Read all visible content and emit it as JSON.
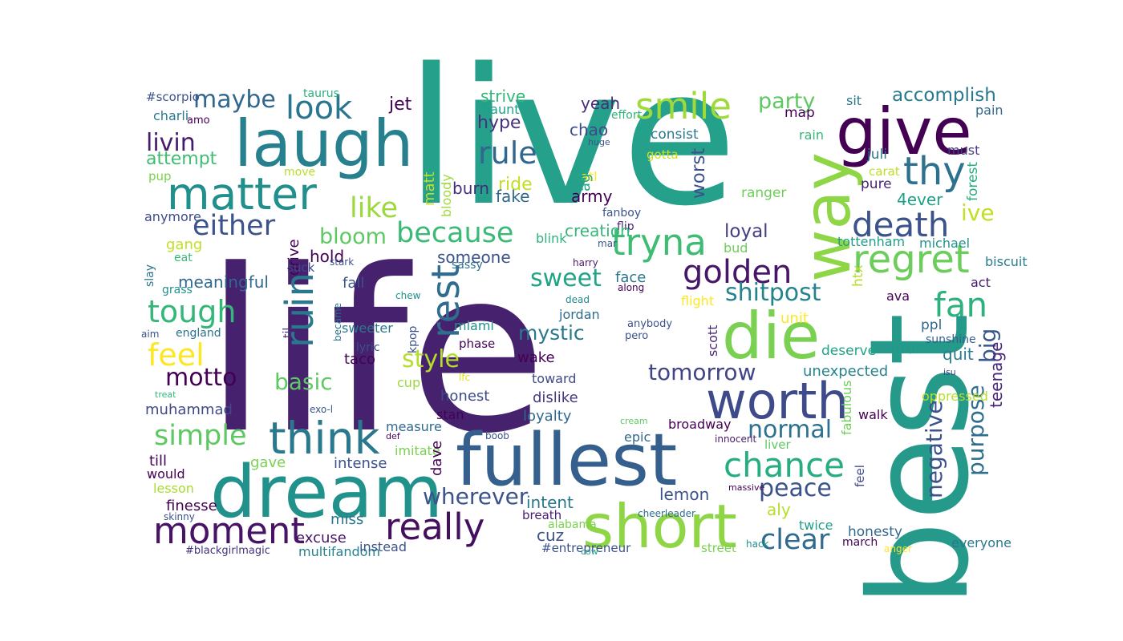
{
  "words": [
    {
      "text": "life",
      "color": "#46226e"
    },
    {
      "text": "live",
      "color": "#25a08b"
    },
    {
      "text": "best",
      "color": "#259a8b"
    },
    {
      "text": "fullest",
      "color": "#355f8d"
    },
    {
      "text": "dream",
      "color": "#21918c"
    },
    {
      "text": "laugh",
      "color": "#27808e"
    },
    {
      "text": "short",
      "color": "#8ed645"
    },
    {
      "text": "give",
      "color": "#440154"
    },
    {
      "text": "die",
      "color": "#7ad151"
    },
    {
      "text": "way",
      "color": "#8ed645"
    },
    {
      "text": "matter",
      "color": "#21908c"
    },
    {
      "text": "worth",
      "color": "#3e4a89"
    },
    {
      "text": "moment",
      "color": "#471365"
    },
    {
      "text": "think",
      "color": "#2a788e"
    },
    {
      "text": "regret",
      "color": "#6ccd5a"
    },
    {
      "text": "tryna",
      "color": "#3fbc73"
    },
    {
      "text": "really",
      "color": "#440f5f"
    },
    {
      "text": "thy",
      "color": "#2c718e"
    },
    {
      "text": "smile",
      "color": "#9fda3a"
    },
    {
      "text": "ruin",
      "color": "#2a788e"
    },
    {
      "text": "rest",
      "color": "#2f6c8e"
    },
    {
      "text": "death",
      "color": "#3b528b"
    },
    {
      "text": "chance",
      "color": "#26ad81"
    },
    {
      "text": "peace",
      "color": "#3b528b"
    },
    {
      "text": "golden",
      "color": "#481668"
    },
    {
      "text": "fan",
      "color": "#2db27d"
    },
    {
      "text": "look",
      "color": "#2a768e"
    },
    {
      "text": "rule",
      "color": "#31668e"
    },
    {
      "text": "because",
      "color": "#3aba76"
    },
    {
      "text": "like",
      "color": "#9bd93c"
    },
    {
      "text": "either",
      "color": "#3b528b"
    },
    {
      "text": "tough",
      "color": "#35b779"
    },
    {
      "text": "feel",
      "color": "#fde725"
    },
    {
      "text": "simple",
      "color": "#5ec962"
    },
    {
      "text": "clear",
      "color": "#306a8e"
    },
    {
      "text": "normal",
      "color": "#2c728e"
    },
    {
      "text": "tomorrow",
      "color": "#404588"
    },
    {
      "text": "negative",
      "color": "#3b528b"
    },
    {
      "text": "purpose",
      "color": "#2e6f8e"
    },
    {
      "text": "big",
      "color": "#38588c"
    },
    {
      "text": "style",
      "color": "#b5de2b"
    },
    {
      "text": "sweet",
      "color": "#20a386"
    },
    {
      "text": "shitpost",
      "color": "#25838e"
    },
    {
      "text": "bloom",
      "color": "#5ec962"
    },
    {
      "text": "maybe",
      "color": "#31688e"
    },
    {
      "text": "livin",
      "color": "#481a6c"
    },
    {
      "text": "party",
      "color": "#5ec962"
    },
    {
      "text": "accomplish",
      "color": "#2a788e"
    },
    {
      "text": "ive",
      "color": "#c0df25"
    },
    {
      "text": "motto",
      "color": "#440154"
    },
    {
      "text": "basic",
      "color": "#5ec962"
    },
    {
      "text": "wherever",
      "color": "#3b528b"
    },
    {
      "text": "mystic",
      "color": "#2a788e"
    },
    {
      "text": "loyal",
      "color": "#433e85"
    },
    {
      "text": "attempt",
      "color": "#3fbc73"
    },
    {
      "text": "ride",
      "color": "#c2df23"
    },
    {
      "text": "hype",
      "color": "#46327e"
    },
    {
      "text": "yeah",
      "color": "#472d7b"
    },
    {
      "text": "jet",
      "color": "#440154"
    },
    {
      "text": "chao",
      "color": "#3e4a89"
    },
    {
      "text": "strive",
      "color": "#32b67a"
    },
    {
      "text": "haunt",
      "color": "#1fa088"
    },
    {
      "text": "effort",
      "color": "#2fb47c"
    },
    {
      "text": "huge",
      "color": "#3b528b"
    },
    {
      "text": "map",
      "color": "#440154"
    },
    {
      "text": "sit",
      "color": "#2a788e"
    },
    {
      "text": "pain",
      "color": "#31688e"
    },
    {
      "text": "rain",
      "color": "#35b779"
    },
    {
      "text": "juli",
      "color": "#2a788e"
    },
    {
      "text": "must",
      "color": "#433e85"
    },
    {
      "text": "carat",
      "color": "#bddf26"
    },
    {
      "text": "pure",
      "color": "#482475"
    },
    {
      "text": "forest",
      "color": "#25ac82"
    },
    {
      "text": "ranger",
      "color": "#6ccd5a"
    },
    {
      "text": "4ever",
      "color": "#1fa187"
    },
    {
      "text": "worst",
      "color": "#3b528b"
    },
    {
      "text": "consist",
      "color": "#2a788e"
    },
    {
      "text": "atl",
      "color": "#fde725"
    },
    {
      "text": "gotta",
      "color": "#c8e020"
    },
    {
      "text": "age",
      "color": "#22a884"
    },
    {
      "text": "army",
      "color": "#440154"
    },
    {
      "text": "burn",
      "color": "#472c7a"
    },
    {
      "text": "fake",
      "color": "#31688e"
    },
    {
      "text": "matt",
      "color": "#c0df25"
    },
    {
      "text": "bloody",
      "color": "#9fda3a"
    },
    {
      "text": "fanboy",
      "color": "#3a548c"
    },
    {
      "text": "flip",
      "color": "#482878"
    },
    {
      "text": "creation",
      "color": "#35b779"
    },
    {
      "text": "mar",
      "color": "#3b528b"
    },
    {
      "text": "harry",
      "color": "#48196b"
    },
    {
      "text": "blink",
      "color": "#2eb37c"
    },
    {
      "text": "bud",
      "color": "#6ece58"
    },
    {
      "text": "tottenham",
      "color": "#1f9e89"
    },
    {
      "text": "michael",
      "color": "#21918c"
    },
    {
      "text": "biscuit",
      "color": "#287d8e"
    },
    {
      "text": "htx",
      "color": "#b5de2b"
    },
    {
      "text": "act",
      "color": "#48186a"
    },
    {
      "text": "ava",
      "color": "#440154"
    },
    {
      "text": "face",
      "color": "#2a768e"
    },
    {
      "text": "along",
      "color": "#440154"
    },
    {
      "text": "flight",
      "color": "#fde725"
    },
    {
      "text": "unit",
      "color": "#fde725"
    },
    {
      "text": "deserve",
      "color": "#20a386"
    },
    {
      "text": "drunk",
      "color": "#1f9a8a"
    },
    {
      "text": "ppl",
      "color": "#31688e"
    },
    {
      "text": "sunshine",
      "color": "#355f8d"
    },
    {
      "text": "quit",
      "color": "#287c8e"
    },
    {
      "text": "isu",
      "color": "#414487"
    },
    {
      "text": "teenage",
      "color": "#482576"
    },
    {
      "text": "unexpected",
      "color": "#25838e"
    },
    {
      "text": "scott",
      "color": "#482878"
    },
    {
      "text": "anybody",
      "color": "#3b528b"
    },
    {
      "text": "pero",
      "color": "#3b528b"
    },
    {
      "text": "jordan",
      "color": "#2f6c8e"
    },
    {
      "text": "dead",
      "color": "#23888e"
    },
    {
      "text": "fall",
      "color": "#3b528b"
    },
    {
      "text": "someone",
      "color": "#3b528b"
    },
    {
      "text": "hold",
      "color": "#440154"
    },
    {
      "text": "drive",
      "color": "#440154"
    },
    {
      "text": "meaningful",
      "color": "#31688e"
    },
    {
      "text": "suck",
      "color": "#3e4a89"
    },
    {
      "text": "stark",
      "color": "#3b528b"
    },
    {
      "text": "sassy",
      "color": "#2c728e"
    },
    {
      "text": "gang",
      "color": "#c2df23"
    },
    {
      "text": "eat",
      "color": "#35b779"
    },
    {
      "text": "slay",
      "color": "#2c738e"
    },
    {
      "text": "grass",
      "color": "#21918c"
    },
    {
      "text": "anymore",
      "color": "#3e4c8a"
    },
    {
      "text": "pup",
      "color": "#7ad151"
    },
    {
      "text": "charli",
      "color": "#29798e"
    },
    {
      "text": "amo",
      "color": "#440154"
    },
    {
      "text": "#scorpio",
      "color": "#3b528b"
    },
    {
      "text": "taurus",
      "color": "#29af7f"
    },
    {
      "text": "move",
      "color": "#b8de29"
    },
    {
      "text": "became",
      "color": "#2c728e"
    },
    {
      "text": "chew",
      "color": "#21918c"
    },
    {
      "text": "til",
      "color": "#472f7d"
    },
    {
      "text": "sweeter",
      "color": "#2a788e"
    },
    {
      "text": "kpop",
      "color": "#3b528b"
    },
    {
      "text": "miami",
      "color": "#21918c"
    },
    {
      "text": "lyric",
      "color": "#3b528b"
    },
    {
      "text": "taco",
      "color": "#440154"
    },
    {
      "text": "phase",
      "color": "#440154"
    },
    {
      "text": "wake",
      "color": "#440154"
    },
    {
      "text": "england",
      "color": "#2c728e"
    },
    {
      "text": "aim",
      "color": "#3b528b"
    },
    {
      "text": "treat",
      "color": "#35b779"
    },
    {
      "text": "muhammad",
      "color": "#3e4a89"
    },
    {
      "text": "exo-l",
      "color": "#39568c"
    },
    {
      "text": "cup",
      "color": "#9bd93c"
    },
    {
      "text": "lfc",
      "color": "#dde318"
    },
    {
      "text": "toward",
      "color": "#3e4a89"
    },
    {
      "text": "dislike",
      "color": "#453882"
    },
    {
      "text": "honest",
      "color": "#3e4a89"
    },
    {
      "text": "stan",
      "color": "#440154"
    },
    {
      "text": "loyalty",
      "color": "#31688e"
    },
    {
      "text": "measure",
      "color": "#31688e"
    },
    {
      "text": "def",
      "color": "#440154"
    },
    {
      "text": "cream",
      "color": "#5ec962"
    },
    {
      "text": "boob",
      "color": "#3b528b"
    },
    {
      "text": "broadway",
      "color": "#440154"
    },
    {
      "text": "innocent",
      "color": "#481a6c"
    },
    {
      "text": "epic",
      "color": "#31688e"
    },
    {
      "text": "liver",
      "color": "#5ec962"
    },
    {
      "text": "oppressed",
      "color": "#b8de29"
    },
    {
      "text": "walk",
      "color": "#440154"
    },
    {
      "text": "fabulous",
      "color": "#6ece58"
    },
    {
      "text": "cheerleader",
      "color": "#2f6b8e"
    },
    {
      "text": "till",
      "color": "#440154"
    },
    {
      "text": "would",
      "color": "#440154"
    },
    {
      "text": "gave",
      "color": "#7ad151"
    },
    {
      "text": "intense",
      "color": "#3b528b"
    },
    {
      "text": "lesson",
      "color": "#aadc32"
    },
    {
      "text": "finesse",
      "color": "#440154"
    },
    {
      "text": "miss",
      "color": "#2b758e"
    },
    {
      "text": "imitate",
      "color": "#7ad151"
    },
    {
      "text": "dave",
      "color": "#440154"
    },
    {
      "text": "lemon",
      "color": "#3b528b"
    },
    {
      "text": "intent",
      "color": "#2a788e"
    },
    {
      "text": "massive",
      "color": "#440154"
    },
    {
      "text": "feel",
      "color": "#3e4a89"
    },
    {
      "text": "aly",
      "color": "#b5de2b"
    },
    {
      "text": "excuse",
      "color": "#471365"
    },
    {
      "text": "breath",
      "color": "#482071"
    },
    {
      "text": "alabama",
      "color": "#7ad151"
    },
    {
      "text": "cuz",
      "color": "#3b528b"
    },
    {
      "text": "skinny",
      "color": "#3b528b"
    },
    {
      "text": "multifandom",
      "color": "#26828e"
    },
    {
      "text": "instead",
      "color": "#3b528b"
    },
    {
      "text": "#blackgirlmagic",
      "color": "#46327e"
    },
    {
      "text": "#entrepreneur",
      "color": "#3b528b"
    },
    {
      "text": "cow",
      "color": "#1f9e89"
    },
    {
      "text": "street",
      "color": "#7ad151"
    },
    {
      "text": "hack",
      "color": "#21918c"
    },
    {
      "text": "twice",
      "color": "#1f9e89"
    },
    {
      "text": "march",
      "color": "#440154"
    },
    {
      "text": "anger",
      "color": "#fde725"
    },
    {
      "text": "honesty",
      "color": "#31688e"
    },
    {
      "text": "everyone",
      "color": "#2a788e"
    },
    {
      "text": "lightly",
      "color": "#2c728e"
    }
  ]
}
